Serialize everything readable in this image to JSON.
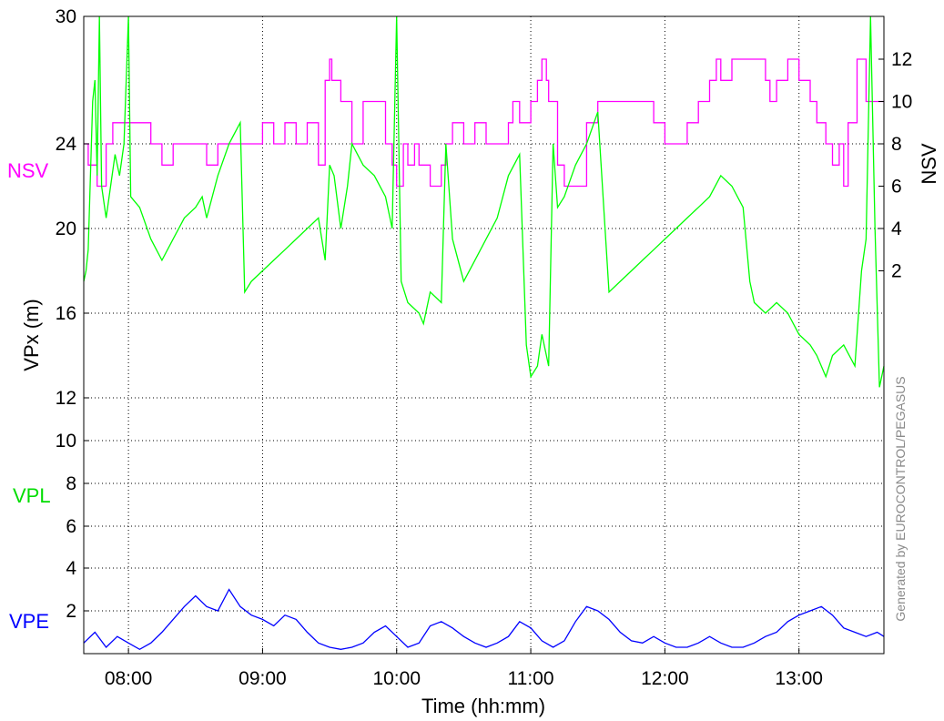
{
  "chart_data": {
    "type": "line",
    "title": "",
    "xlabel": "Time (hh:mm)",
    "ylabel": "VPx  (m)",
    "ylabel_right": "NSV",
    "credit": "Generated by EUROCONTROL/PEGASUS",
    "x_unit": "hh:mm",
    "xlim": [
      "07:40",
      "13:38"
    ],
    "x_ticks": [
      "08:00",
      "09:00",
      "10:00",
      "11:00",
      "12:00",
      "13:00"
    ],
    "y_ticks": [
      {
        "value": 2,
        "label": "2"
      },
      {
        "value": 4,
        "label": "4"
      },
      {
        "value": 6,
        "label": "6"
      },
      {
        "value": 8,
        "label": "8"
      },
      {
        "value": 10,
        "label": "10"
      },
      {
        "value": 12,
        "label": "12"
      },
      {
        "value": 16,
        "label": "16"
      },
      {
        "value": 20,
        "label": "20"
      },
      {
        "value": 24,
        "label": "24"
      },
      {
        "value": 30,
        "label": "30"
      }
    ],
    "y_right_ticks": [
      2,
      4,
      6,
      8,
      10,
      12
    ],
    "grid": true,
    "series": [
      {
        "name": "NSV",
        "color": "#ff00ff",
        "axis": "right",
        "points": [
          [
            "07:40",
            8
          ],
          [
            "07:42",
            7
          ],
          [
            "07:46",
            6
          ],
          [
            "07:50",
            8
          ],
          [
            "07:53",
            9
          ],
          [
            "08:00",
            9
          ],
          [
            "08:10",
            8
          ],
          [
            "08:15",
            7
          ],
          [
            "08:20",
            8
          ],
          [
            "08:30",
            8
          ],
          [
            "08:35",
            7
          ],
          [
            "08:40",
            8
          ],
          [
            "08:50",
            8
          ],
          [
            "09:00",
            9
          ],
          [
            "09:05",
            8
          ],
          [
            "09:10",
            9
          ],
          [
            "09:15",
            8
          ],
          [
            "09:20",
            9
          ],
          [
            "09:25",
            7
          ],
          [
            "09:28",
            11
          ],
          [
            "09:30",
            12
          ],
          [
            "09:31",
            11
          ],
          [
            "09:35",
            10
          ],
          [
            "09:40",
            8
          ],
          [
            "09:45",
            10
          ],
          [
            "09:48",
            10
          ],
          [
            "09:55",
            8
          ],
          [
            "09:58",
            7
          ],
          [
            "10:00",
            6
          ],
          [
            "10:03",
            8
          ],
          [
            "10:05",
            7
          ],
          [
            "10:08",
            8
          ],
          [
            "10:10",
            7
          ],
          [
            "10:15",
            6
          ],
          [
            "10:20",
            7
          ],
          [
            "10:22",
            8
          ],
          [
            "10:25",
            9
          ],
          [
            "10:30",
            8
          ],
          [
            "10:35",
            9
          ],
          [
            "10:40",
            8
          ],
          [
            "10:45",
            8
          ],
          [
            "10:50",
            9
          ],
          [
            "10:52",
            10
          ],
          [
            "10:55",
            9
          ],
          [
            "11:00",
            10
          ],
          [
            "11:03",
            11
          ],
          [
            "11:05",
            12
          ],
          [
            "11:07",
            11
          ],
          [
            "11:08",
            10
          ],
          [
            "11:10",
            10
          ],
          [
            "11:12",
            7
          ],
          [
            "11:15",
            6
          ],
          [
            "11:25",
            9
          ],
          [
            "11:30",
            10
          ],
          [
            "11:40",
            10
          ],
          [
            "11:50",
            10
          ],
          [
            "11:55",
            9
          ],
          [
            "12:00",
            8
          ],
          [
            "12:05",
            8
          ],
          [
            "12:10",
            9
          ],
          [
            "12:15",
            10
          ],
          [
            "12:20",
            11
          ],
          [
            "12:23",
            12
          ],
          [
            "12:25",
            11
          ],
          [
            "12:30",
            12
          ],
          [
            "12:35",
            12
          ],
          [
            "12:40",
            12
          ],
          [
            "12:45",
            11
          ],
          [
            "12:47",
            10
          ],
          [
            "12:50",
            11
          ],
          [
            "12:55",
            12
          ],
          [
            "13:00",
            11
          ],
          [
            "13:05",
            10
          ],
          [
            "13:08",
            9
          ],
          [
            "13:12",
            8
          ],
          [
            "13:15",
            7
          ],
          [
            "13:18",
            8
          ],
          [
            "13:20",
            6
          ],
          [
            "13:22",
            9
          ],
          [
            "13:26",
            12
          ],
          [
            "13:30",
            10
          ],
          [
            "13:38",
            10
          ]
        ]
      },
      {
        "name": "VPL",
        "color": "#00ff00",
        "axis": "left",
        "points": [
          [
            "07:40",
            17.5
          ],
          [
            "07:41",
            18
          ],
          [
            "07:42",
            19
          ],
          [
            "07:44",
            26
          ],
          [
            "07:45",
            27
          ],
          [
            "07:46",
            22.5
          ],
          [
            "07:47",
            30
          ],
          [
            "07:48",
            22
          ],
          [
            "07:50",
            20.5
          ],
          [
            "07:54",
            23.5
          ],
          [
            "07:56",
            22.5
          ],
          [
            "07:58",
            24
          ],
          [
            "08:00",
            30
          ],
          [
            "08:01",
            21.5
          ],
          [
            "08:05",
            21
          ],
          [
            "08:10",
            19.5
          ],
          [
            "08:15",
            18.5
          ],
          [
            "08:20",
            19.5
          ],
          [
            "08:25",
            20.5
          ],
          [
            "08:30",
            21
          ],
          [
            "08:33",
            21.5
          ],
          [
            "08:35",
            20.5
          ],
          [
            "08:40",
            22.5
          ],
          [
            "08:45",
            24
          ],
          [
            "08:50",
            25
          ],
          [
            "08:52",
            17
          ],
          [
            "08:55",
            17.5
          ],
          [
            "09:00",
            18
          ],
          [
            "09:05",
            18.5
          ],
          [
            "09:10",
            19
          ],
          [
            "09:15",
            19.5
          ],
          [
            "09:20",
            20
          ],
          [
            "09:25",
            20.5
          ],
          [
            "09:28",
            18.5
          ],
          [
            "09:30",
            23
          ],
          [
            "09:32",
            22.5
          ],
          [
            "09:35",
            20
          ],
          [
            "09:38",
            22
          ],
          [
            "09:40",
            24
          ],
          [
            "09:45",
            23
          ],
          [
            "09:50",
            22.5
          ],
          [
            "09:55",
            21.5
          ],
          [
            "09:58",
            20
          ],
          [
            "10:00",
            30
          ],
          [
            "10:02",
            17.5
          ],
          [
            "10:05",
            16.5
          ],
          [
            "10:10",
            16
          ],
          [
            "10:12",
            15.5
          ],
          [
            "10:15",
            17
          ],
          [
            "10:20",
            16.5
          ],
          [
            "10:22",
            24
          ],
          [
            "10:25",
            19.5
          ],
          [
            "10:30",
            17.5
          ],
          [
            "10:35",
            18.5
          ],
          [
            "10:40",
            19.5
          ],
          [
            "10:45",
            20.5
          ],
          [
            "10:50",
            22.5
          ],
          [
            "10:55",
            23.5
          ],
          [
            "10:58",
            14.5
          ],
          [
            "11:00",
            13
          ],
          [
            "11:03",
            13.5
          ],
          [
            "11:05",
            15
          ],
          [
            "11:08",
            13.5
          ],
          [
            "11:10",
            24
          ],
          [
            "11:12",
            21
          ],
          [
            "11:15",
            21.5
          ],
          [
            "11:20",
            23
          ],
          [
            "11:25",
            24
          ],
          [
            "11:30",
            25.5
          ],
          [
            "11:35",
            17
          ],
          [
            "11:40",
            17.5
          ],
          [
            "11:45",
            18
          ],
          [
            "11:50",
            18.5
          ],
          [
            "11:55",
            19
          ],
          [
            "12:00",
            19.5
          ],
          [
            "12:05",
            20
          ],
          [
            "12:10",
            20.5
          ],
          [
            "12:15",
            21
          ],
          [
            "12:20",
            21.5
          ],
          [
            "12:25",
            22.5
          ],
          [
            "12:30",
            22
          ],
          [
            "12:35",
            21
          ],
          [
            "12:38",
            17.5
          ],
          [
            "12:40",
            16.5
          ],
          [
            "12:45",
            16
          ],
          [
            "12:50",
            16.5
          ],
          [
            "12:55",
            16
          ],
          [
            "13:00",
            15
          ],
          [
            "13:05",
            14.5
          ],
          [
            "13:08",
            14
          ],
          [
            "13:12",
            13
          ],
          [
            "13:15",
            14
          ],
          [
            "13:20",
            14.5
          ],
          [
            "13:25",
            13.5
          ],
          [
            "13:28",
            18
          ],
          [
            "13:30",
            19.5
          ],
          [
            "13:32",
            30
          ],
          [
            "13:34",
            20
          ],
          [
            "13:36",
            12.5
          ],
          [
            "13:38",
            13.5
          ]
        ]
      },
      {
        "name": "VPE",
        "color": "#0000ff",
        "axis": "left",
        "points": [
          [
            "07:40",
            0.5
          ],
          [
            "07:45",
            1.0
          ],
          [
            "07:50",
            0.3
          ],
          [
            "07:55",
            0.8
          ],
          [
            "08:00",
            0.5
          ],
          [
            "08:05",
            0.2
          ],
          [
            "08:10",
            0.5
          ],
          [
            "08:15",
            1.0
          ],
          [
            "08:20",
            1.6
          ],
          [
            "08:25",
            2.2
          ],
          [
            "08:30",
            2.7
          ],
          [
            "08:35",
            2.2
          ],
          [
            "08:40",
            2.0
          ],
          [
            "08:45",
            3.0
          ],
          [
            "08:50",
            2.2
          ],
          [
            "08:55",
            1.8
          ],
          [
            "09:00",
            1.6
          ],
          [
            "09:05",
            1.3
          ],
          [
            "09:10",
            1.8
          ],
          [
            "09:15",
            1.6
          ],
          [
            "09:20",
            1.0
          ],
          [
            "09:25",
            0.5
          ],
          [
            "09:30",
            0.3
          ],
          [
            "09:35",
            0.2
          ],
          [
            "09:40",
            0.3
          ],
          [
            "09:45",
            0.5
          ],
          [
            "09:50",
            1.0
          ],
          [
            "09:55",
            1.3
          ],
          [
            "10:00",
            0.8
          ],
          [
            "10:05",
            0.3
          ],
          [
            "10:10",
            0.5
          ],
          [
            "10:15",
            1.3
          ],
          [
            "10:20",
            1.5
          ],
          [
            "10:25",
            1.2
          ],
          [
            "10:30",
            0.8
          ],
          [
            "10:35",
            0.5
          ],
          [
            "10:40",
            0.3
          ],
          [
            "10:45",
            0.5
          ],
          [
            "10:50",
            0.8
          ],
          [
            "10:55",
            1.5
          ],
          [
            "11:00",
            1.2
          ],
          [
            "11:05",
            0.6
          ],
          [
            "11:10",
            0.3
          ],
          [
            "11:15",
            0.6
          ],
          [
            "11:20",
            1.5
          ],
          [
            "11:25",
            2.2
          ],
          [
            "11:30",
            2.0
          ],
          [
            "11:35",
            1.6
          ],
          [
            "11:40",
            1.0
          ],
          [
            "11:45",
            0.6
          ],
          [
            "11:50",
            0.5
          ],
          [
            "11:55",
            0.8
          ],
          [
            "12:00",
            0.5
          ],
          [
            "12:05",
            0.3
          ],
          [
            "12:10",
            0.3
          ],
          [
            "12:15",
            0.5
          ],
          [
            "12:20",
            0.8
          ],
          [
            "12:25",
            0.5
          ],
          [
            "12:30",
            0.3
          ],
          [
            "12:35",
            0.3
          ],
          [
            "12:40",
            0.5
          ],
          [
            "12:45",
            0.8
          ],
          [
            "12:50",
            1.0
          ],
          [
            "12:55",
            1.5
          ],
          [
            "13:00",
            1.8
          ],
          [
            "13:05",
            2.0
          ],
          [
            "13:10",
            2.2
          ],
          [
            "13:15",
            1.8
          ],
          [
            "13:20",
            1.2
          ],
          [
            "13:25",
            1.0
          ],
          [
            "13:30",
            0.8
          ],
          [
            "13:35",
            1.0
          ],
          [
            "13:38",
            0.8
          ]
        ]
      }
    ]
  }
}
